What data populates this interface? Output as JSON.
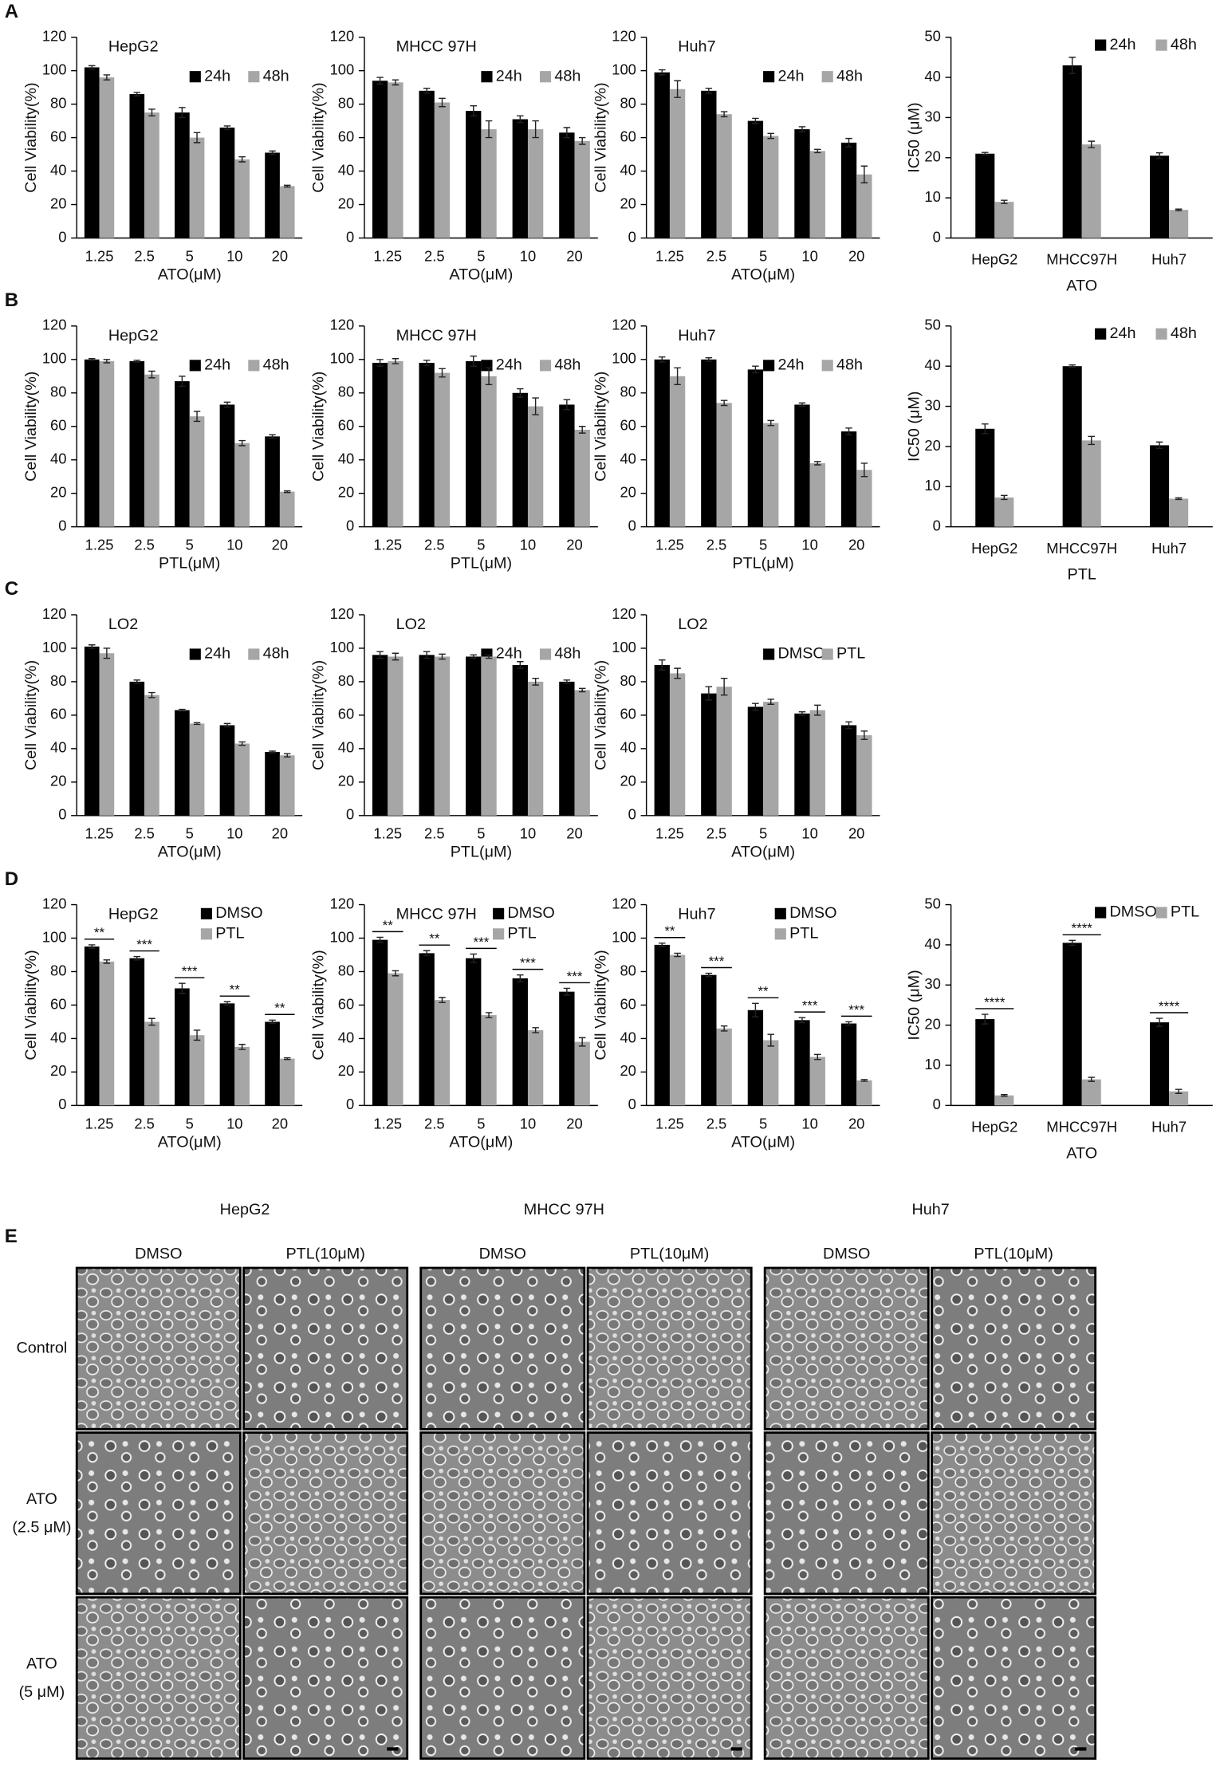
{
  "chart_data": [
    {
      "type": "bar",
      "panel": "A",
      "title": "HepG2",
      "xlabel": "ATO(μM)",
      "ylabel": "Cell Viability(%)",
      "categories": [
        "1.25",
        "2.5",
        "5",
        "10",
        "20"
      ],
      "series": [
        {
          "name": "24h",
          "color": "#000000",
          "values": [
            102,
            86,
            75,
            66,
            51
          ],
          "errors": [
            1,
            1,
            3,
            1,
            1
          ]
        },
        {
          "name": "48h",
          "color": "#a6a6a6",
          "values": [
            96,
            75,
            60,
            47,
            31
          ],
          "errors": [
            1.5,
            2,
            3,
            1.5,
            0.5
          ]
        }
      ],
      "ylim": [
        0,
        120
      ],
      "yticks": [
        0,
        20,
        40,
        60,
        80,
        100,
        120
      ],
      "legend": "upper right"
    },
    {
      "type": "bar",
      "title": "MHCC 97H",
      "xlabel": "ATO(μM)",
      "ylabel": "Cell Viability(%)",
      "categories": [
        "1.25",
        "2.5",
        "5",
        "10",
        "20"
      ],
      "series": [
        {
          "name": "24h",
          "color": "#000000",
          "values": [
            94,
            88,
            76,
            71,
            63
          ],
          "errors": [
            2,
            1.5,
            3,
            2,
            3
          ]
        },
        {
          "name": "48h",
          "color": "#a6a6a6",
          "values": [
            93,
            81,
            65,
            65,
            58
          ],
          "errors": [
            1.5,
            2.5,
            5,
            5,
            2
          ]
        }
      ],
      "ylim": [
        0,
        120
      ],
      "yticks": [
        0,
        20,
        40,
        60,
        80,
        100,
        120
      ],
      "legend": "upper right"
    },
    {
      "type": "bar",
      "title": "Huh7",
      "xlabel": "ATO(μM)",
      "ylabel": "Cell Viability(%)",
      "categories": [
        "1.25",
        "2.5",
        "5",
        "10",
        "20"
      ],
      "series": [
        {
          "name": "24h",
          "color": "#000000",
          "values": [
            99,
            88,
            70,
            65,
            57
          ],
          "errors": [
            1.5,
            1.5,
            1.5,
            1.5,
            2.5
          ]
        },
        {
          "name": "48h",
          "color": "#a6a6a6",
          "values": [
            89,
            74,
            61,
            52,
            38
          ],
          "errors": [
            5,
            1.5,
            1.5,
            1,
            5
          ]
        }
      ],
      "ylim": [
        0,
        120
      ],
      "yticks": [
        0,
        20,
        40,
        60,
        80,
        100,
        120
      ],
      "legend": "upper right"
    },
    {
      "type": "bar",
      "xlabel": "ATO",
      "ylabel": "IC50 (μM)",
      "categories": [
        "HepG2",
        "MHCC97H",
        "Huh7"
      ],
      "series": [
        {
          "name": "24h",
          "color": "#000000",
          "values": [
            21,
            43,
            20.5
          ],
          "errors": [
            0.3,
            2,
            0.7
          ]
        },
        {
          "name": "48h",
          "color": "#a6a6a6",
          "values": [
            9,
            23.3,
            7
          ],
          "errors": [
            0.4,
            0.8,
            0.2
          ]
        }
      ],
      "ylim": [
        0,
        50
      ],
      "yticks": [
        0,
        10,
        20,
        30,
        40,
        50
      ],
      "legend": "upper right"
    },
    {
      "type": "bar",
      "panel": "B",
      "title": "HepG2",
      "xlabel": "PTL(μM)",
      "ylabel": "Cell Viability(%)",
      "categories": [
        "1.25",
        "2.5",
        "5",
        "10",
        "20"
      ],
      "series": [
        {
          "name": "24h",
          "color": "#000000",
          "values": [
            100,
            99,
            87,
            73,
            54
          ],
          "errors": [
            0.5,
            0.5,
            3,
            1.5,
            1
          ]
        },
        {
          "name": "48h",
          "color": "#a6a6a6",
          "values": [
            99,
            91,
            66,
            50,
            21
          ],
          "errors": [
            1,
            2,
            3,
            1.5,
            0.5
          ]
        }
      ],
      "ylim": [
        0,
        120
      ],
      "yticks": [
        0,
        20,
        40,
        60,
        80,
        100,
        120
      ],
      "legend": "upper right"
    },
    {
      "type": "bar",
      "title": "MHCC 97H",
      "xlabel": "PTL(μM)",
      "ylabel": "Cell Viability(%)",
      "categories": [
        "1.25",
        "2.5",
        "5",
        "10",
        "20"
      ],
      "series": [
        {
          "name": "24h",
          "color": "#000000",
          "values": [
            98,
            98,
            99,
            80,
            73
          ],
          "errors": [
            2,
            1.5,
            3,
            2.5,
            3
          ]
        },
        {
          "name": "48h",
          "color": "#a6a6a6",
          "values": [
            99,
            92,
            90,
            72,
            58
          ],
          "errors": [
            1.5,
            2.5,
            5,
            5,
            2
          ]
        }
      ],
      "ylim": [
        0,
        120
      ],
      "yticks": [
        0,
        20,
        40,
        60,
        80,
        100,
        120
      ],
      "legend": "upper right"
    },
    {
      "type": "bar",
      "title": "Huh7",
      "xlabel": "PTL(μM)",
      "ylabel": "Cell Viability(%)",
      "categories": [
        "1.25",
        "2.5",
        "5",
        "10",
        "20"
      ],
      "series": [
        {
          "name": "24h",
          "color": "#000000",
          "values": [
            100,
            100,
            94,
            73,
            57
          ],
          "errors": [
            1.5,
            1,
            2,
            1,
            2
          ]
        },
        {
          "name": "48h",
          "color": "#a6a6a6",
          "values": [
            90,
            74,
            62,
            38,
            34
          ],
          "errors": [
            5,
            1.5,
            1.5,
            1,
            4
          ]
        }
      ],
      "ylim": [
        0,
        120
      ],
      "yticks": [
        0,
        20,
        40,
        60,
        80,
        100,
        120
      ],
      "legend": "upper right"
    },
    {
      "type": "bar",
      "xlabel": "PTL",
      "ylabel": "IC50 (μM)",
      "categories": [
        "HepG2",
        "MHCC97H",
        "Huh7"
      ],
      "series": [
        {
          "name": "24h",
          "color": "#000000",
          "values": [
            24.4,
            40,
            20.3
          ],
          "errors": [
            1.2,
            0.3,
            0.8
          ]
        },
        {
          "name": "48h",
          "color": "#a6a6a6",
          "values": [
            7.3,
            21.5,
            7
          ],
          "errors": [
            0.5,
            1,
            0.2
          ]
        }
      ],
      "ylim": [
        0,
        50
      ],
      "yticks": [
        0,
        10,
        20,
        30,
        40,
        50
      ],
      "legend": "upper right"
    },
    {
      "type": "bar",
      "panel": "C",
      "title": "LO2",
      "xlabel": "ATO(μM)",
      "ylabel": "Cell Viability(%)",
      "categories": [
        "1.25",
        "2.5",
        "5",
        "10",
        "20"
      ],
      "series": [
        {
          "name": "24h",
          "color": "#000000",
          "values": [
            101,
            80,
            63,
            54,
            38
          ],
          "errors": [
            1,
            1,
            0.5,
            1,
            0.5
          ]
        },
        {
          "name": "48h",
          "color": "#a6a6a6",
          "values": [
            97,
            72,
            55,
            43,
            36
          ],
          "errors": [
            3,
            1.5,
            0.5,
            1,
            1
          ]
        }
      ],
      "ylim": [
        0,
        120
      ],
      "yticks": [
        0,
        20,
        40,
        60,
        80,
        100,
        120
      ],
      "legend": "upper right"
    },
    {
      "type": "bar",
      "title": "LO2",
      "xlabel": "PTL(μM)",
      "ylabel": "Cell Viability(%)",
      "categories": [
        "1.25",
        "2.5",
        "5",
        "10",
        "20"
      ],
      "series": [
        {
          "name": "24h",
          "color": "#000000",
          "values": [
            96,
            96,
            95,
            90,
            80
          ],
          "errors": [
            2,
            2,
            1,
            2,
            1
          ]
        },
        {
          "name": "48h",
          "color": "#a6a6a6",
          "values": [
            95,
            95,
            95,
            80,
            75
          ],
          "errors": [
            2,
            1.5,
            1,
            2,
            1
          ]
        }
      ],
      "ylim": [
        0,
        120
      ],
      "yticks": [
        0,
        20,
        40,
        60,
        80,
        100,
        120
      ],
      "legend": "upper right"
    },
    {
      "type": "bar",
      "title": "LO2",
      "xlabel": "ATO(μM)",
      "ylabel": "Cell Viability(%)",
      "categories": [
        "1.25",
        "2.5",
        "5",
        "10",
        "20"
      ],
      "series": [
        {
          "name": "DMSO",
          "color": "#000000",
          "values": [
            90,
            73,
            65,
            61,
            54
          ],
          "errors": [
            3,
            4,
            2,
            1,
            2
          ]
        },
        {
          "name": "PTL",
          "color": "#a6a6a6",
          "values": [
            85,
            77,
            68,
            63,
            48
          ],
          "errors": [
            3,
            5,
            1.5,
            3,
            2.5
          ]
        }
      ],
      "ylim": [
        0,
        120
      ],
      "yticks": [
        0,
        20,
        40,
        60,
        80,
        100,
        120
      ],
      "legend": "upper right"
    },
    {
      "type": "bar",
      "panel": "D",
      "title": "HepG2",
      "xlabel": "ATO(μM)",
      "ylabel": "Cell Viability(%)",
      "categories": [
        "1.25",
        "2.5",
        "5",
        "10",
        "20"
      ],
      "series": [
        {
          "name": "DMSO",
          "color": "#000000",
          "values": [
            95,
            88,
            70,
            61,
            50
          ],
          "errors": [
            1,
            1,
            3,
            1,
            1
          ]
        },
        {
          "name": "PTL",
          "color": "#a6a6a6",
          "values": [
            86,
            50,
            42,
            35,
            28
          ],
          "errors": [
            1,
            2,
            3,
            1.5,
            0.5
          ]
        }
      ],
      "annotations": [
        "**",
        "***",
        "***",
        "**",
        "**"
      ],
      "ylim": [
        0,
        120
      ],
      "yticks": [
        0,
        20,
        40,
        60,
        80,
        100,
        120
      ],
      "legend": "upper right"
    },
    {
      "type": "bar",
      "title": "MHCC 97H",
      "xlabel": "ATO(μM)",
      "ylabel": "Cell Viability(%)",
      "categories": [
        "1.25",
        "2.5",
        "5",
        "10",
        "20"
      ],
      "series": [
        {
          "name": "DMSO",
          "color": "#000000",
          "values": [
            99,
            91,
            88,
            76,
            68
          ],
          "errors": [
            1.5,
            1.5,
            2.5,
            2,
            2
          ]
        },
        {
          "name": "PTL",
          "color": "#a6a6a6",
          "values": [
            79,
            63,
            54,
            45,
            38
          ],
          "errors": [
            1.5,
            1.5,
            1.5,
            1.5,
            2.5
          ]
        }
      ],
      "annotations": [
        "**",
        "**",
        "***",
        "***",
        "***"
      ],
      "ylim": [
        0,
        120
      ],
      "yticks": [
        0,
        20,
        40,
        60,
        80,
        100,
        120
      ],
      "legend": "upper right"
    },
    {
      "type": "bar",
      "title": "Huh7",
      "xlabel": "ATO(μM)",
      "ylabel": "Cell Viability(%)",
      "categories": [
        "1.25",
        "2.5",
        "5",
        "10",
        "20"
      ],
      "series": [
        {
          "name": "DMSO",
          "color": "#000000",
          "values": [
            96,
            78,
            57,
            51,
            49
          ],
          "errors": [
            1,
            1,
            4,
            1.5,
            1
          ]
        },
        {
          "name": "PTL",
          "color": "#a6a6a6",
          "values": [
            90,
            46,
            39,
            29,
            15
          ],
          "errors": [
            1,
            1.5,
            3.5,
            1.5,
            0.5
          ]
        }
      ],
      "annotations": [
        "**",
        "***",
        "**",
        "***",
        "***"
      ],
      "ylim": [
        0,
        120
      ],
      "yticks": [
        0,
        20,
        40,
        60,
        80,
        100,
        120
      ],
      "legend": "upper right"
    },
    {
      "type": "bar",
      "xlabel": "ATO",
      "ylabel": "IC50 (μM)",
      "categories": [
        "HepG2",
        "MHCC97H",
        "Huh7"
      ],
      "series": [
        {
          "name": "DMSO",
          "color": "#000000",
          "values": [
            21.5,
            40.5,
            20.7
          ],
          "errors": [
            1.2,
            0.6,
            1
          ]
        },
        {
          "name": "PTL",
          "color": "#a6a6a6",
          "values": [
            2.5,
            6.5,
            3.5
          ],
          "errors": [
            0.2,
            0.5,
            0.5
          ]
        }
      ],
      "annotations": [
        "****",
        "****",
        "****"
      ],
      "ylim": [
        0,
        50
      ],
      "yticks": [
        0,
        10,
        20,
        30,
        40,
        50
      ],
      "legend": "upper right"
    }
  ],
  "panel_e": {
    "label": "E",
    "cell_lines": [
      "HepG2",
      "MHCC 97H",
      "Huh7"
    ],
    "treatments": [
      "DMSO",
      "PTL(10μM)"
    ],
    "conditions": [
      [
        "Control"
      ],
      [
        "ATO",
        "(2.5 μM)"
      ],
      [
        "ATO",
        "(5 μM)"
      ]
    ]
  }
}
